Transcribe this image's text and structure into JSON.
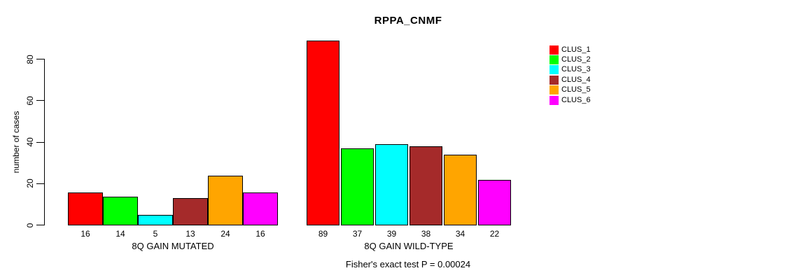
{
  "chart_data": {
    "type": "bar",
    "title": "RPPA_CNMF",
    "ylabel": "number of cases",
    "xlabel": "",
    "yticks": [
      0,
      20,
      40,
      60,
      80
    ],
    "ylim": [
      0,
      89
    ],
    "grid": false,
    "legend_position": "right",
    "clusters": [
      "CLUS_1",
      "CLUS_2",
      "CLUS_3",
      "CLUS_4",
      "CLUS_5",
      "CLUS_6"
    ],
    "colors": [
      "#FF0000",
      "#00FF00",
      "#00FFFF",
      "#A52A2A",
      "#FFA500",
      "#FF00FF"
    ],
    "groups": [
      {
        "label": "8Q GAIN MUTATED",
        "values": [
          16,
          14,
          5,
          13,
          24,
          16
        ]
      },
      {
        "label": "8Q GAIN WILD-TYPE",
        "values": [
          89,
          37,
          39,
          38,
          34,
          22
        ]
      }
    ],
    "annotation": "Fisher's exact test P = 0.00024"
  }
}
